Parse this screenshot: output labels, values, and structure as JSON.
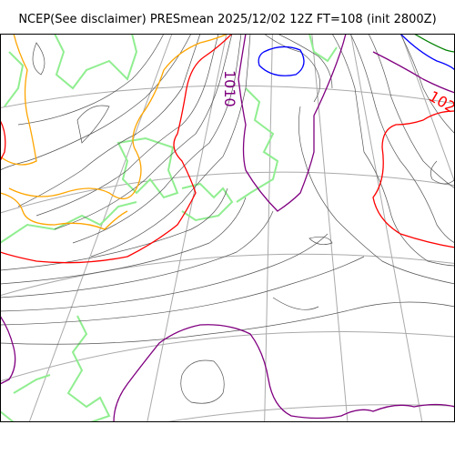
{
  "title": "NCEP(See disclaimer) PRESmean 2025/12/02 12Z FT=108 (init 2800Z)",
  "contour_labels": {
    "top_center": "1010",
    "top_right": "102"
  },
  "colors": {
    "isobar_default": "#555555",
    "isobar_1010": "#800080",
    "isobar_1020": "#ff0000",
    "isobar_low_blue": "#0000ff",
    "isobar_orange": "#ffa500",
    "isobar_green": "#008000",
    "coastline": "#90ee90",
    "graticule": "#aaaaaa"
  }
}
